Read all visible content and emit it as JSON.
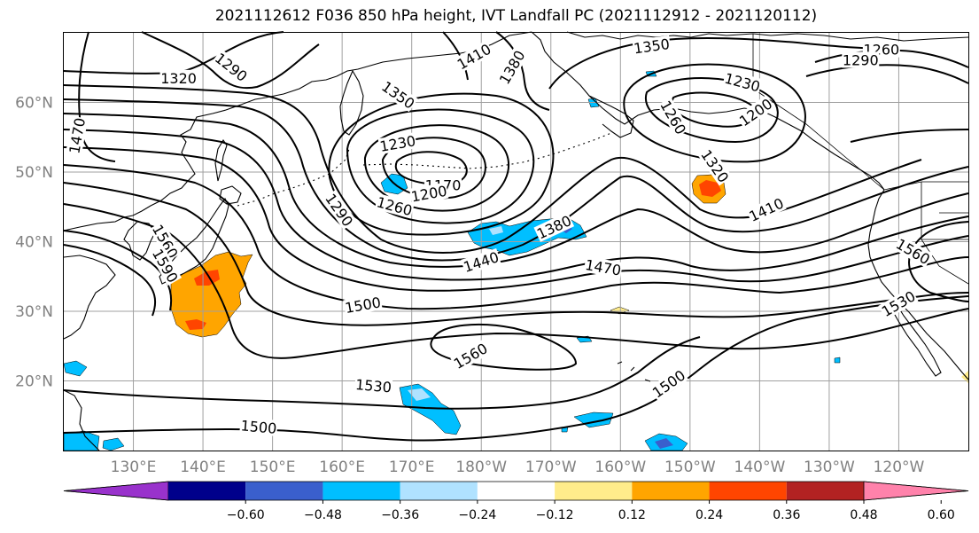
{
  "title": "2021112612 F036 850 hPa height, IVT Landfall PC (2021112912 - 2021120112)",
  "lat_labels": [
    {
      "text": "60°N",
      "lat": 60
    },
    {
      "text": "50°N",
      "lat": 50
    },
    {
      "text": "40°N",
      "lat": 40
    },
    {
      "text": "30°N",
      "lat": 30
    },
    {
      "text": "20°N",
      "lat": 20
    }
  ],
  "lon_labels": [
    {
      "text": "130°E",
      "lon": 130
    },
    {
      "text": "140°E",
      "lon": 140
    },
    {
      "text": "150°E",
      "lon": 150
    },
    {
      "text": "160°E",
      "lon": 160
    },
    {
      "text": "170°E",
      "lon": 170
    },
    {
      "text": "180°W",
      "lon": 180
    },
    {
      "text": "170°W",
      "lon": 190
    },
    {
      "text": "160°W",
      "lon": 200
    },
    {
      "text": "150°W",
      "lon": 210
    },
    {
      "text": "140°W",
      "lon": 220
    },
    {
      "text": "130°W",
      "lon": 230
    },
    {
      "text": "120°W",
      "lon": 240
    }
  ],
  "map_extent": {
    "lon_min": 120,
    "lon_max": 250,
    "lat_min": 10,
    "lat_max": 70
  },
  "contour_labels": [
    {
      "text": "1320",
      "lon": 136.5,
      "lat": 63.4,
      "rot": 0
    },
    {
      "text": "1290",
      "lon": 144.0,
      "lat": 65.0,
      "rot": 38
    },
    {
      "text": "1470",
      "lon": 122.0,
      "lat": 55.2,
      "rot": -80
    },
    {
      "text": "1350",
      "lon": 168.0,
      "lat": 61.0,
      "rot": 35
    },
    {
      "text": "1410",
      "lon": 179.0,
      "lat": 66.5,
      "rot": -30
    },
    {
      "text": "1380",
      "lon": 184.5,
      "lat": 65.0,
      "rot": -60
    },
    {
      "text": "1350",
      "lon": 204.5,
      "lat": 68.0,
      "rot": -8
    },
    {
      "text": "1260",
      "lon": 237.5,
      "lat": 67.5,
      "rot": 0
    },
    {
      "text": "1290",
      "lon": 234.5,
      "lat": 66.0,
      "rot": 0
    },
    {
      "text": "1230",
      "lon": 217.5,
      "lat": 62.8,
      "rot": 15
    },
    {
      "text": "1200",
      "lon": 219.5,
      "lat": 58.5,
      "rot": -35
    },
    {
      "text": "1260",
      "lon": 207.5,
      "lat": 57.8,
      "rot": 60
    },
    {
      "text": "1320",
      "lon": 213.5,
      "lat": 50.8,
      "rot": 55
    },
    {
      "text": "1230",
      "lon": 168.0,
      "lat": 54.0,
      "rot": -10
    },
    {
      "text": "1170",
      "lon": 174.5,
      "lat": 48.0,
      "rot": 0
    },
    {
      "text": "1200",
      "lon": 172.5,
      "lat": 46.8,
      "rot": -10
    },
    {
      "text": "1260",
      "lon": 167.5,
      "lat": 45.0,
      "rot": 15
    },
    {
      "text": "1290",
      "lon": 159.5,
      "lat": 44.5,
      "rot": 55
    },
    {
      "text": "1380",
      "lon": 190.5,
      "lat": 42.0,
      "rot": -25
    },
    {
      "text": "1440",
      "lon": 180.0,
      "lat": 37.0,
      "rot": -18
    },
    {
      "text": "1470",
      "lon": 197.5,
      "lat": 36.2,
      "rot": 10
    },
    {
      "text": "1410",
      "lon": 221.0,
      "lat": 44.5,
      "rot": -25
    },
    {
      "text": "1560",
      "lon": 242.0,
      "lat": 38.5,
      "rot": 30
    },
    {
      "text": "1530",
      "lon": 240.0,
      "lat": 31.0,
      "rot": -30
    },
    {
      "text": "1560",
      "lon": 134.5,
      "lat": 40.0,
      "rot": 60
    },
    {
      "text": "1590",
      "lon": 134.5,
      "lat": 36.5,
      "rot": 60
    },
    {
      "text": "1500",
      "lon": 163.0,
      "lat": 30.8,
      "rot": -10
    },
    {
      "text": "1560",
      "lon": 178.5,
      "lat": 23.5,
      "rot": -30
    },
    {
      "text": "1530",
      "lon": 164.5,
      "lat": 19.2,
      "rot": 5
    },
    {
      "text": "1500",
      "lon": 148.0,
      "lat": 13.3,
      "rot": 5
    },
    {
      "text": "1500",
      "lon": 207.0,
      "lat": 19.5,
      "rot": -35
    }
  ],
  "colorbar": {
    "tick_labels": [
      "−0.60",
      "−0.48",
      "−0.36",
      "−0.24",
      "−0.12",
      "0.12",
      "0.24",
      "0.36",
      "0.48",
      "0.60"
    ],
    "colors": [
      "#9932cc",
      "#00008b",
      "#3a5fcd",
      "#00bfff",
      "#b0e2ff",
      "#ffffff",
      "#ffec8b",
      "#ffa500",
      "#ff4500",
      "#b22222",
      "#ff82ab"
    ]
  },
  "colors": {
    "contour": "#000000",
    "coast": "#000000",
    "grid": "#a0a0a0"
  }
}
